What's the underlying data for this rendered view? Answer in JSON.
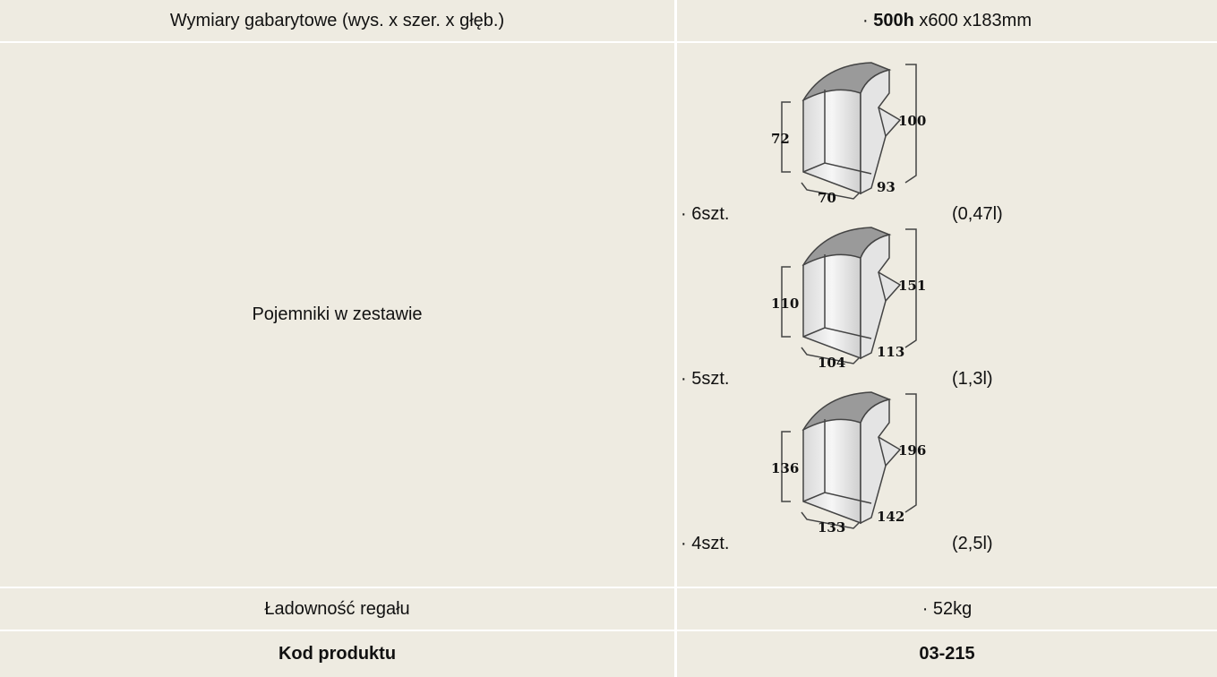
{
  "table": {
    "rows": [
      {
        "label": "Wymiary gabarytowe (wys. x szer. x głęb.)",
        "value": {
          "prefix": "· ",
          "bold": "500h",
          "rest": " x600 x183mm"
        }
      },
      {
        "label": "Pojemniki w zestawie",
        "containers": [
          {
            "count": "· 6szt.",
            "volume": "(0,47l)",
            "dims": {
              "height": "72",
              "tall": "100",
              "width": "70",
              "depth": "93"
            }
          },
          {
            "count": "· 5szt.",
            "volume": "(1,3l)",
            "dims": {
              "height": "110",
              "tall": "151",
              "width": "104",
              "depth": "113"
            }
          },
          {
            "count": "· 4szt.",
            "volume": "(2,5l)",
            "dims": {
              "height": "136",
              "tall": "196",
              "width": "133",
              "depth": "142"
            }
          }
        ]
      },
      {
        "label": "Ładowność regału",
        "value": "· 52kg"
      },
      {
        "label": "Kod produktu",
        "value": "03-215"
      }
    ]
  }
}
